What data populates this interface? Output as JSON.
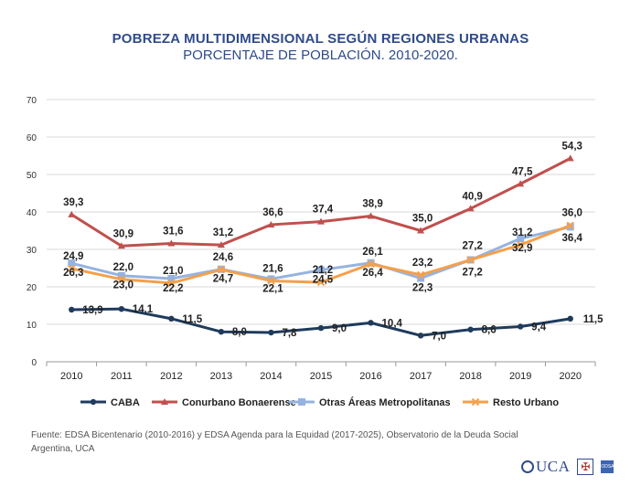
{
  "title": "POBREZA MULTIDIMENSIONAL SEGÚN REGIONES URBANAS",
  "subtitle": "PORCENTAJE DE POBLACIÓN. 2010-2020.",
  "source": "Fuente: EDSA Bicentenario (2010-2016) y EDSA Agenda para la Equidad (2017-2025), Observatorio de la Deuda Social Argentina, UCA",
  "logos": {
    "uca": "UCA",
    "odsa": "ODSA"
  },
  "chart_data": {
    "type": "line",
    "title": "POBREZA MULTIDIMENSIONAL SEGÚN REGIONES URBANAS",
    "subtitle": "PORCENTAJE DE POBLACIÓN. 2010-2020.",
    "xlabel": "",
    "ylabel": "",
    "ylim": [
      0,
      70
    ],
    "yticks": [
      "0",
      "10",
      "20",
      "30",
      "40",
      "50",
      "60",
      "70"
    ],
    "grid": true,
    "legend": "bottom",
    "categories": [
      "2010",
      "2011",
      "2012",
      "2013",
      "2014",
      "2015",
      "2016",
      "2017",
      "2018",
      "2019",
      "2020"
    ],
    "series": [
      {
        "name": "CABA",
        "color": "#1f3b5c",
        "marker": "circle",
        "values": [
          13.9,
          14.1,
          11.5,
          8.0,
          7.8,
          9.0,
          10.4,
          7.0,
          8.6,
          9.4,
          11.5
        ],
        "labels": [
          "13,9",
          "14,1",
          "11,5",
          "8,0",
          "7,8",
          "9,0",
          "10,4",
          "7,0",
          "8,6",
          "9,4",
          "11,5"
        ]
      },
      {
        "name": "Conurbano Bonaerense",
        "color": "#c0504d",
        "marker": "triangle",
        "values": [
          39.3,
          30.9,
          31.6,
          31.2,
          36.6,
          37.4,
          38.9,
          35.0,
          40.9,
          47.5,
          54.3
        ],
        "labels": [
          "39,3",
          "30,9",
          "31,6",
          "31,2",
          "36,6",
          "37,4",
          "38,9",
          "35,0",
          "40,9",
          "47,5",
          "54,3"
        ]
      },
      {
        "name": "Otras Áreas Metropolitanas",
        "color": "#95b3e0",
        "marker": "square",
        "values": [
          26.3,
          23.0,
          22.2,
          24.7,
          22.1,
          24.5,
          26.4,
          22.3,
          27.2,
          32.9,
          36.0
        ],
        "labels": [
          "26,3",
          "23,0",
          "22,2",
          "24,7",
          "22,1",
          "24,5",
          "26,4",
          "22,3",
          "27,2",
          "32,9",
          "36,0"
        ]
      },
      {
        "name": "Resto Urbano",
        "color": "#f4a04c",
        "marker": "x",
        "values": [
          24.9,
          22.0,
          21.0,
          24.6,
          21.6,
          21.2,
          26.1,
          23.2,
          27.2,
          31.2,
          36.4
        ],
        "labels": [
          "24,9",
          "22,0",
          "21,0",
          "24,6",
          "21,6",
          "21,2",
          "26,1",
          "23,2",
          "27,2",
          "31,2",
          "36,4"
        ]
      }
    ]
  }
}
